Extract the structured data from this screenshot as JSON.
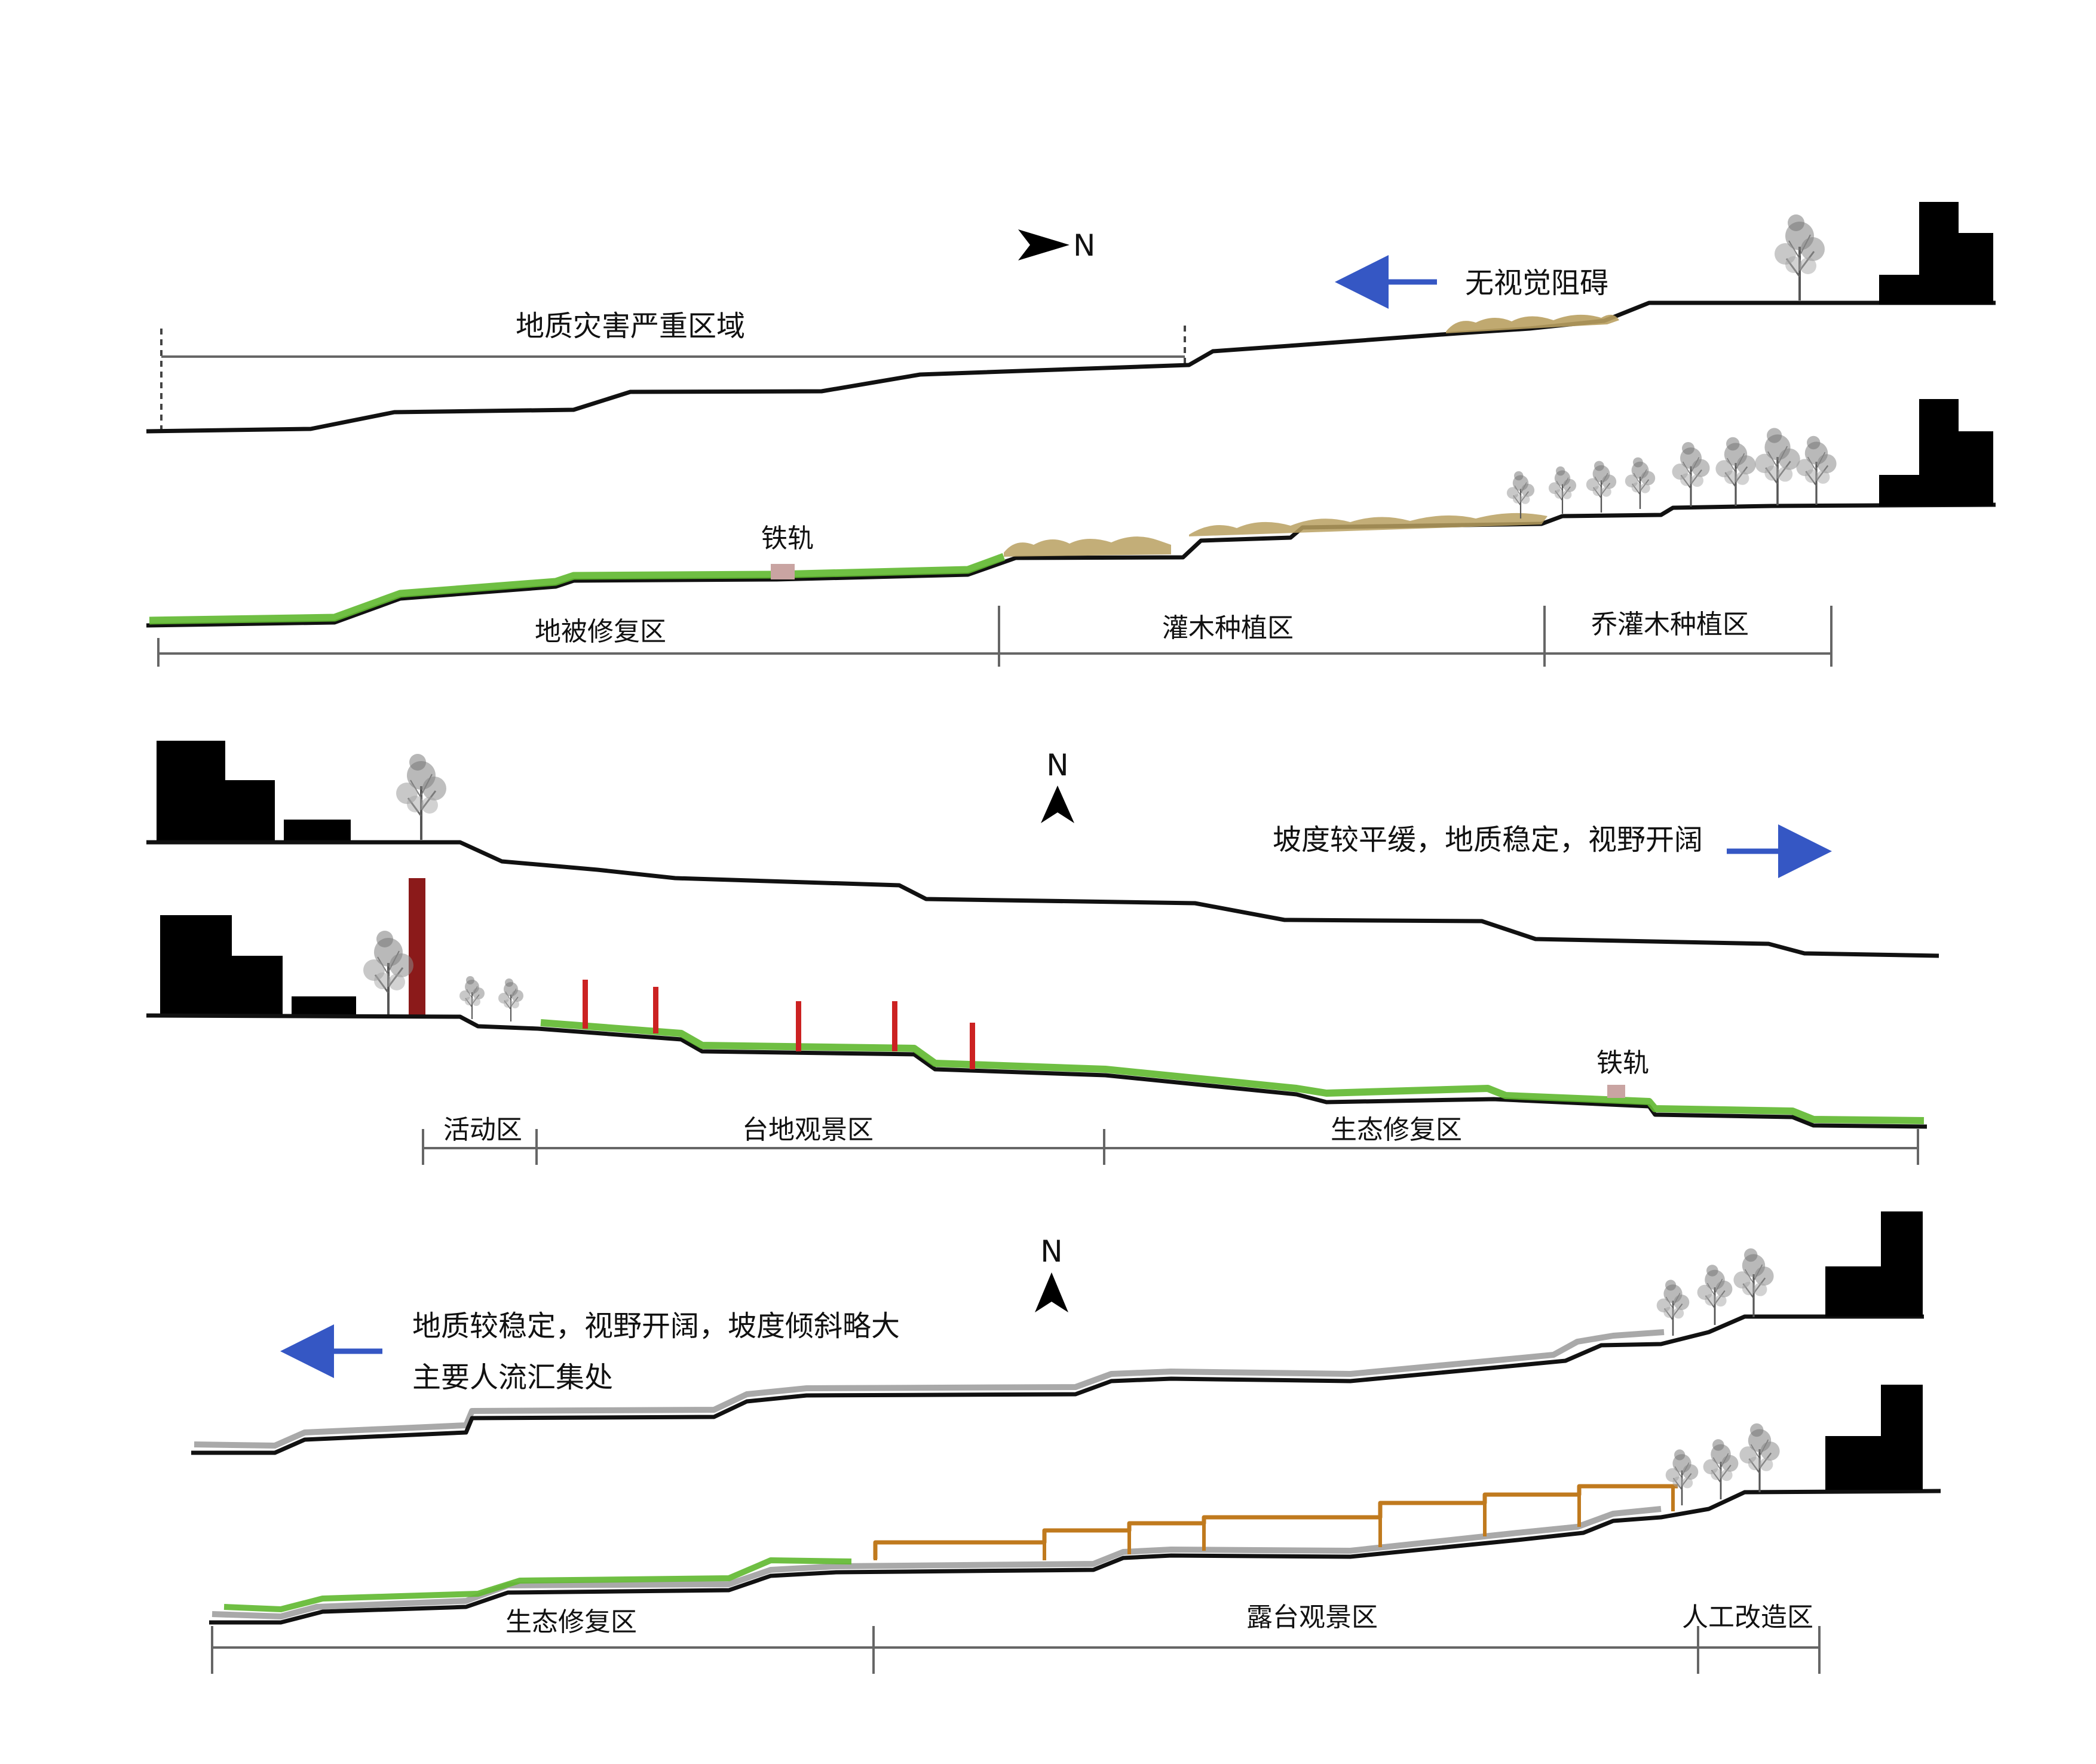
{
  "colors": {
    "terrain": "#111111",
    "ground_cover": "#5fb82f",
    "shrub": "#b9a060",
    "rail": "#c9a4a2",
    "post": "#cc2222",
    "tower": "#8b1a1a",
    "deck": "#c07a1e",
    "original_ground": "#a9a9a9",
    "arrow": "#3557c4",
    "dim_line": "#666666",
    "building": "#000000"
  },
  "section1": {
    "north_label": "N",
    "hazard_label": "地质灾害严重区域",
    "view_label": "无视觉阻碍",
    "rail_label": "铁轨",
    "zones": [
      "地被修复区",
      "灌木种植区",
      "乔灌木种植区"
    ]
  },
  "section2": {
    "north_label": "N",
    "view_label": "坡度较平缓，地质稳定，视野开阔",
    "rail_label": "铁轨",
    "zones": [
      "活动区",
      "台地观景区",
      "生态修复区"
    ]
  },
  "section3": {
    "north_label": "N",
    "view_label_line1": "地质较稳定，视野开阔，坡度倾斜略大",
    "view_label_line2": "主要人流汇集处",
    "zones": [
      "生态修复区",
      "露台观景区",
      "人工改造区"
    ]
  }
}
